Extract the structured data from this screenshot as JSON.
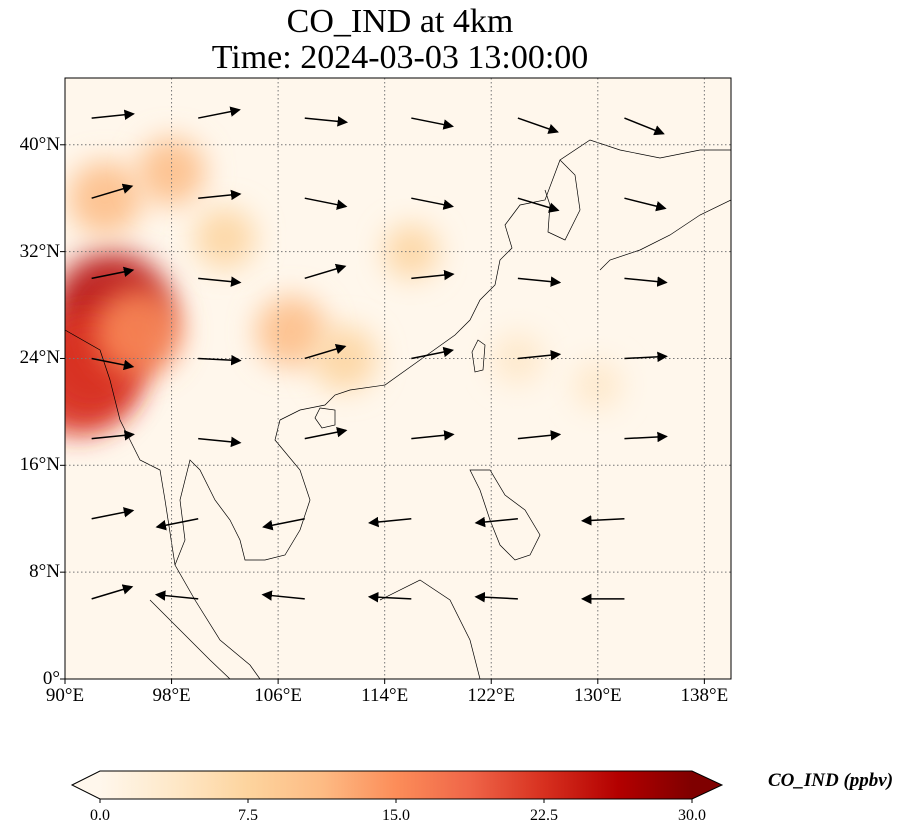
{
  "title_line1": "CO_IND at 4km",
  "title_line2": "Time: 2024-03-03 13:00:00",
  "map": {
    "lon_range": [
      90,
      140
    ],
    "lat_range": [
      0,
      45
    ],
    "lon_ticks": [
      {
        "value": 90,
        "label": "90°E"
      },
      {
        "value": 98,
        "label": "98°E"
      },
      {
        "value": 106,
        "label": "106°E"
      },
      {
        "value": 114,
        "label": "114°E"
      },
      {
        "value": 122,
        "label": "122°E"
      },
      {
        "value": 130,
        "label": "130°E"
      },
      {
        "value": 138,
        "label": "138°E"
      }
    ],
    "lat_ticks": [
      {
        "value": 0,
        "label": "0°"
      },
      {
        "value": 8,
        "label": "8°N"
      },
      {
        "value": 16,
        "label": "16°N"
      },
      {
        "value": 24,
        "label": "24°N"
      },
      {
        "value": 32,
        "label": "32°N"
      },
      {
        "value": 40,
        "label": "40°N"
      }
    ],
    "gridlines": true,
    "gridline_style": "dotted",
    "features": [
      "coastlines",
      "country borders",
      "wind vectors"
    ]
  },
  "colorbar": {
    "label": "CO_IND (ppbv)",
    "min": 0.0,
    "max": 30.0,
    "ticks": [
      "0.0",
      "7.5",
      "15.0",
      "22.5",
      "30.0"
    ],
    "colormap": "OrRd",
    "extend": "both",
    "colors": [
      "#fff7ec",
      "#fee8c8",
      "#fdd49e",
      "#fdbb84",
      "#fc8d59",
      "#ef6548",
      "#d7301f",
      "#b30000",
      "#7f0000"
    ]
  },
  "chart_data": {
    "type": "heatmap",
    "title": "CO_IND at 4km\nTime: 2024-03-03 13:00:00",
    "variable": "CO_IND",
    "units": "ppbv",
    "xlim": [
      90,
      140
    ],
    "ylim": [
      0,
      45
    ],
    "concentration_regions": [
      {
        "lon": 93.5,
        "lat": 27.5,
        "value": 26
      },
      {
        "lon": 91.0,
        "lat": 22.5,
        "value": 24
      },
      {
        "lon": 92.0,
        "lat": 23.5,
        "value": 22
      },
      {
        "lon": 95.5,
        "lat": 26.0,
        "value": 16
      },
      {
        "lon": 93.0,
        "lat": 36.0,
        "value": 12
      },
      {
        "lon": 98.0,
        "lat": 38.0,
        "value": 10
      },
      {
        "lon": 107.0,
        "lat": 26.0,
        "value": 11
      },
      {
        "lon": 111.0,
        "lat": 24.0,
        "value": 9
      },
      {
        "lon": 102.0,
        "lat": 33.0,
        "value": 8
      },
      {
        "lon": 116.0,
        "lat": 32.0,
        "value": 6
      },
      {
        "lon": 124.0,
        "lat": 24.0,
        "value": 5
      },
      {
        "lon": 130.0,
        "lat": 22.0,
        "value": 4
      }
    ],
    "wind": [
      {
        "lon": 92,
        "lat": 42,
        "u": 1,
        "v": 0.1
      },
      {
        "lon": 100,
        "lat": 42,
        "u": 1,
        "v": 0.2
      },
      {
        "lon": 108,
        "lat": 42,
        "u": 1,
        "v": -0.1
      },
      {
        "lon": 116,
        "lat": 42,
        "u": 1,
        "v": -0.2
      },
      {
        "lon": 124,
        "lat": 42,
        "u": 1,
        "v": -0.35
      },
      {
        "lon": 132,
        "lat": 42,
        "u": 1,
        "v": -0.4
      },
      {
        "lon": 92,
        "lat": 36,
        "u": 1,
        "v": 0.3
      },
      {
        "lon": 100,
        "lat": 36,
        "u": 1,
        "v": 0.1
      },
      {
        "lon": 108,
        "lat": 36,
        "u": 1,
        "v": -0.2
      },
      {
        "lon": 116,
        "lat": 36,
        "u": 1,
        "v": -0.2
      },
      {
        "lon": 124,
        "lat": 36,
        "u": 1,
        "v": -0.3
      },
      {
        "lon": 132,
        "lat": 36,
        "u": 1,
        "v": -0.25
      },
      {
        "lon": 92,
        "lat": 30,
        "u": 1,
        "v": 0.2
      },
      {
        "lon": 100,
        "lat": 30,
        "u": 1,
        "v": -0.1
      },
      {
        "lon": 108,
        "lat": 30,
        "u": 1,
        "v": 0.3
      },
      {
        "lon": 116,
        "lat": 30,
        "u": 1,
        "v": 0.1
      },
      {
        "lon": 124,
        "lat": 30,
        "u": 1,
        "v": -0.1
      },
      {
        "lon": 132,
        "lat": 30,
        "u": 1,
        "v": -0.1
      },
      {
        "lon": 92,
        "lat": 24,
        "u": 1,
        "v": -0.2
      },
      {
        "lon": 100,
        "lat": 24,
        "u": 1,
        "v": -0.05
      },
      {
        "lon": 108,
        "lat": 24,
        "u": 1,
        "v": 0.3
      },
      {
        "lon": 116,
        "lat": 24,
        "u": 1,
        "v": 0.2
      },
      {
        "lon": 124,
        "lat": 24,
        "u": 1,
        "v": 0.1
      },
      {
        "lon": 132,
        "lat": 24,
        "u": 1,
        "v": 0.05
      },
      {
        "lon": 92,
        "lat": 18,
        "u": 1,
        "v": 0.1
      },
      {
        "lon": 100,
        "lat": 18,
        "u": 1,
        "v": -0.1
      },
      {
        "lon": 108,
        "lat": 18,
        "u": 1,
        "v": 0.2
      },
      {
        "lon": 116,
        "lat": 18,
        "u": 1,
        "v": 0.1
      },
      {
        "lon": 124,
        "lat": 18,
        "u": 1,
        "v": 0.1
      },
      {
        "lon": 132,
        "lat": 18,
        "u": 1,
        "v": 0.05
      },
      {
        "lon": 92,
        "lat": 12,
        "u": 1,
        "v": 0.2
      },
      {
        "lon": 100,
        "lat": 12,
        "u": -1,
        "v": -0.2
      },
      {
        "lon": 108,
        "lat": 12,
        "u": -1,
        "v": -0.2
      },
      {
        "lon": 116,
        "lat": 12,
        "u": -1,
        "v": -0.1
      },
      {
        "lon": 124,
        "lat": 12,
        "u": -1,
        "v": -0.1
      },
      {
        "lon": 132,
        "lat": 12,
        "u": -1,
        "v": -0.05
      },
      {
        "lon": 92,
        "lat": 6,
        "u": 1,
        "v": 0.3
      },
      {
        "lon": 100,
        "lat": 6,
        "u": -1,
        "v": 0.1
      },
      {
        "lon": 108,
        "lat": 6,
        "u": -1,
        "v": 0.1
      },
      {
        "lon": 116,
        "lat": 6,
        "u": -1,
        "v": 0.05
      },
      {
        "lon": 124,
        "lat": 6,
        "u": -1,
        "v": 0.05
      },
      {
        "lon": 132,
        "lat": 6,
        "u": -1,
        "v": 0
      }
    ]
  }
}
